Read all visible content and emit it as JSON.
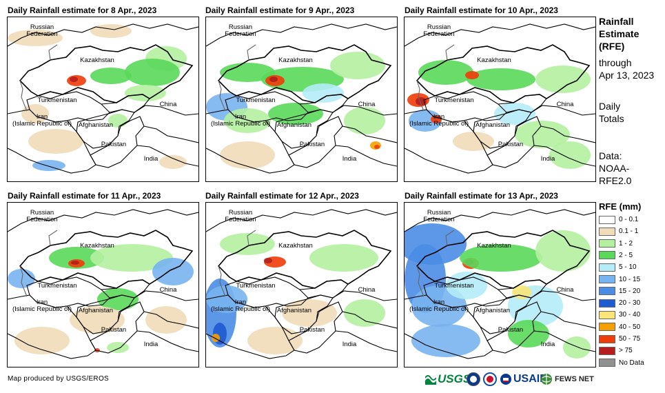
{
  "panels": [
    {
      "title": "Daily Rainfall estimate for 8 Apr., 2023"
    },
    {
      "title": "Daily Rainfall estimate for 9 Apr., 2023"
    },
    {
      "title": "Daily Rainfall estimate for 10 Apr., 2023"
    },
    {
      "title": "Daily Rainfall estimate for 11 Apr., 2023"
    },
    {
      "title": "Daily Rainfall estimate for 12 Apr., 2023"
    },
    {
      "title": "Daily Rainfall estimate for 13 Apr., 2023"
    }
  ],
  "map_labels": {
    "russia_1": "Russian",
    "russia_2": "Federation",
    "kazakhstan": "Kazakhstan",
    "turkmenistan": "Turkmenistan",
    "china": "China",
    "iran_1": "Iran",
    "iran_2": "(Islamic Republic of)",
    "afghanistan": "Afghanistan",
    "pakistan": "Pakistan",
    "india": "India"
  },
  "sidebar": {
    "title_1": "Rainfall",
    "title_2": "Estimate",
    "title_3": "(RFE)",
    "through": "through",
    "date": "Apr 13, 2023",
    "daily": "Daily",
    "totals": "Totals",
    "data": "Data:",
    "source_1": "NOAA-",
    "source_2": "RFE2.0"
  },
  "legend": {
    "title": "RFE (mm)",
    "items": [
      {
        "label": "0 - 0.1",
        "color": "#ffffff"
      },
      {
        "label": "0.1 - 1",
        "color": "#f0dcb8"
      },
      {
        "label": "1 - 2",
        "color": "#b4f0a0"
      },
      {
        "label": "2 - 5",
        "color": "#5ad85a"
      },
      {
        "label": "5 - 10",
        "color": "#b4ecf8"
      },
      {
        "label": "10 - 15",
        "color": "#78b4f0"
      },
      {
        "label": "15 - 20",
        "color": "#4a8ce6"
      },
      {
        "label": "20 - 30",
        "color": "#1e5ad2"
      },
      {
        "label": "30 - 40",
        "color": "#fae678"
      },
      {
        "label": "40 - 50",
        "color": "#f5a000"
      },
      {
        "label": "50 - 75",
        "color": "#f03c0a"
      },
      {
        "label": "> 75",
        "color": "#b41e1e"
      },
      {
        "label": "No Data",
        "color": "#909090"
      }
    ]
  },
  "footer": {
    "credit": "Map produced by USGS/EROS",
    "usgs": "USGS",
    "usaid": "USAID",
    "fewsnet": "FEWS NET"
  }
}
